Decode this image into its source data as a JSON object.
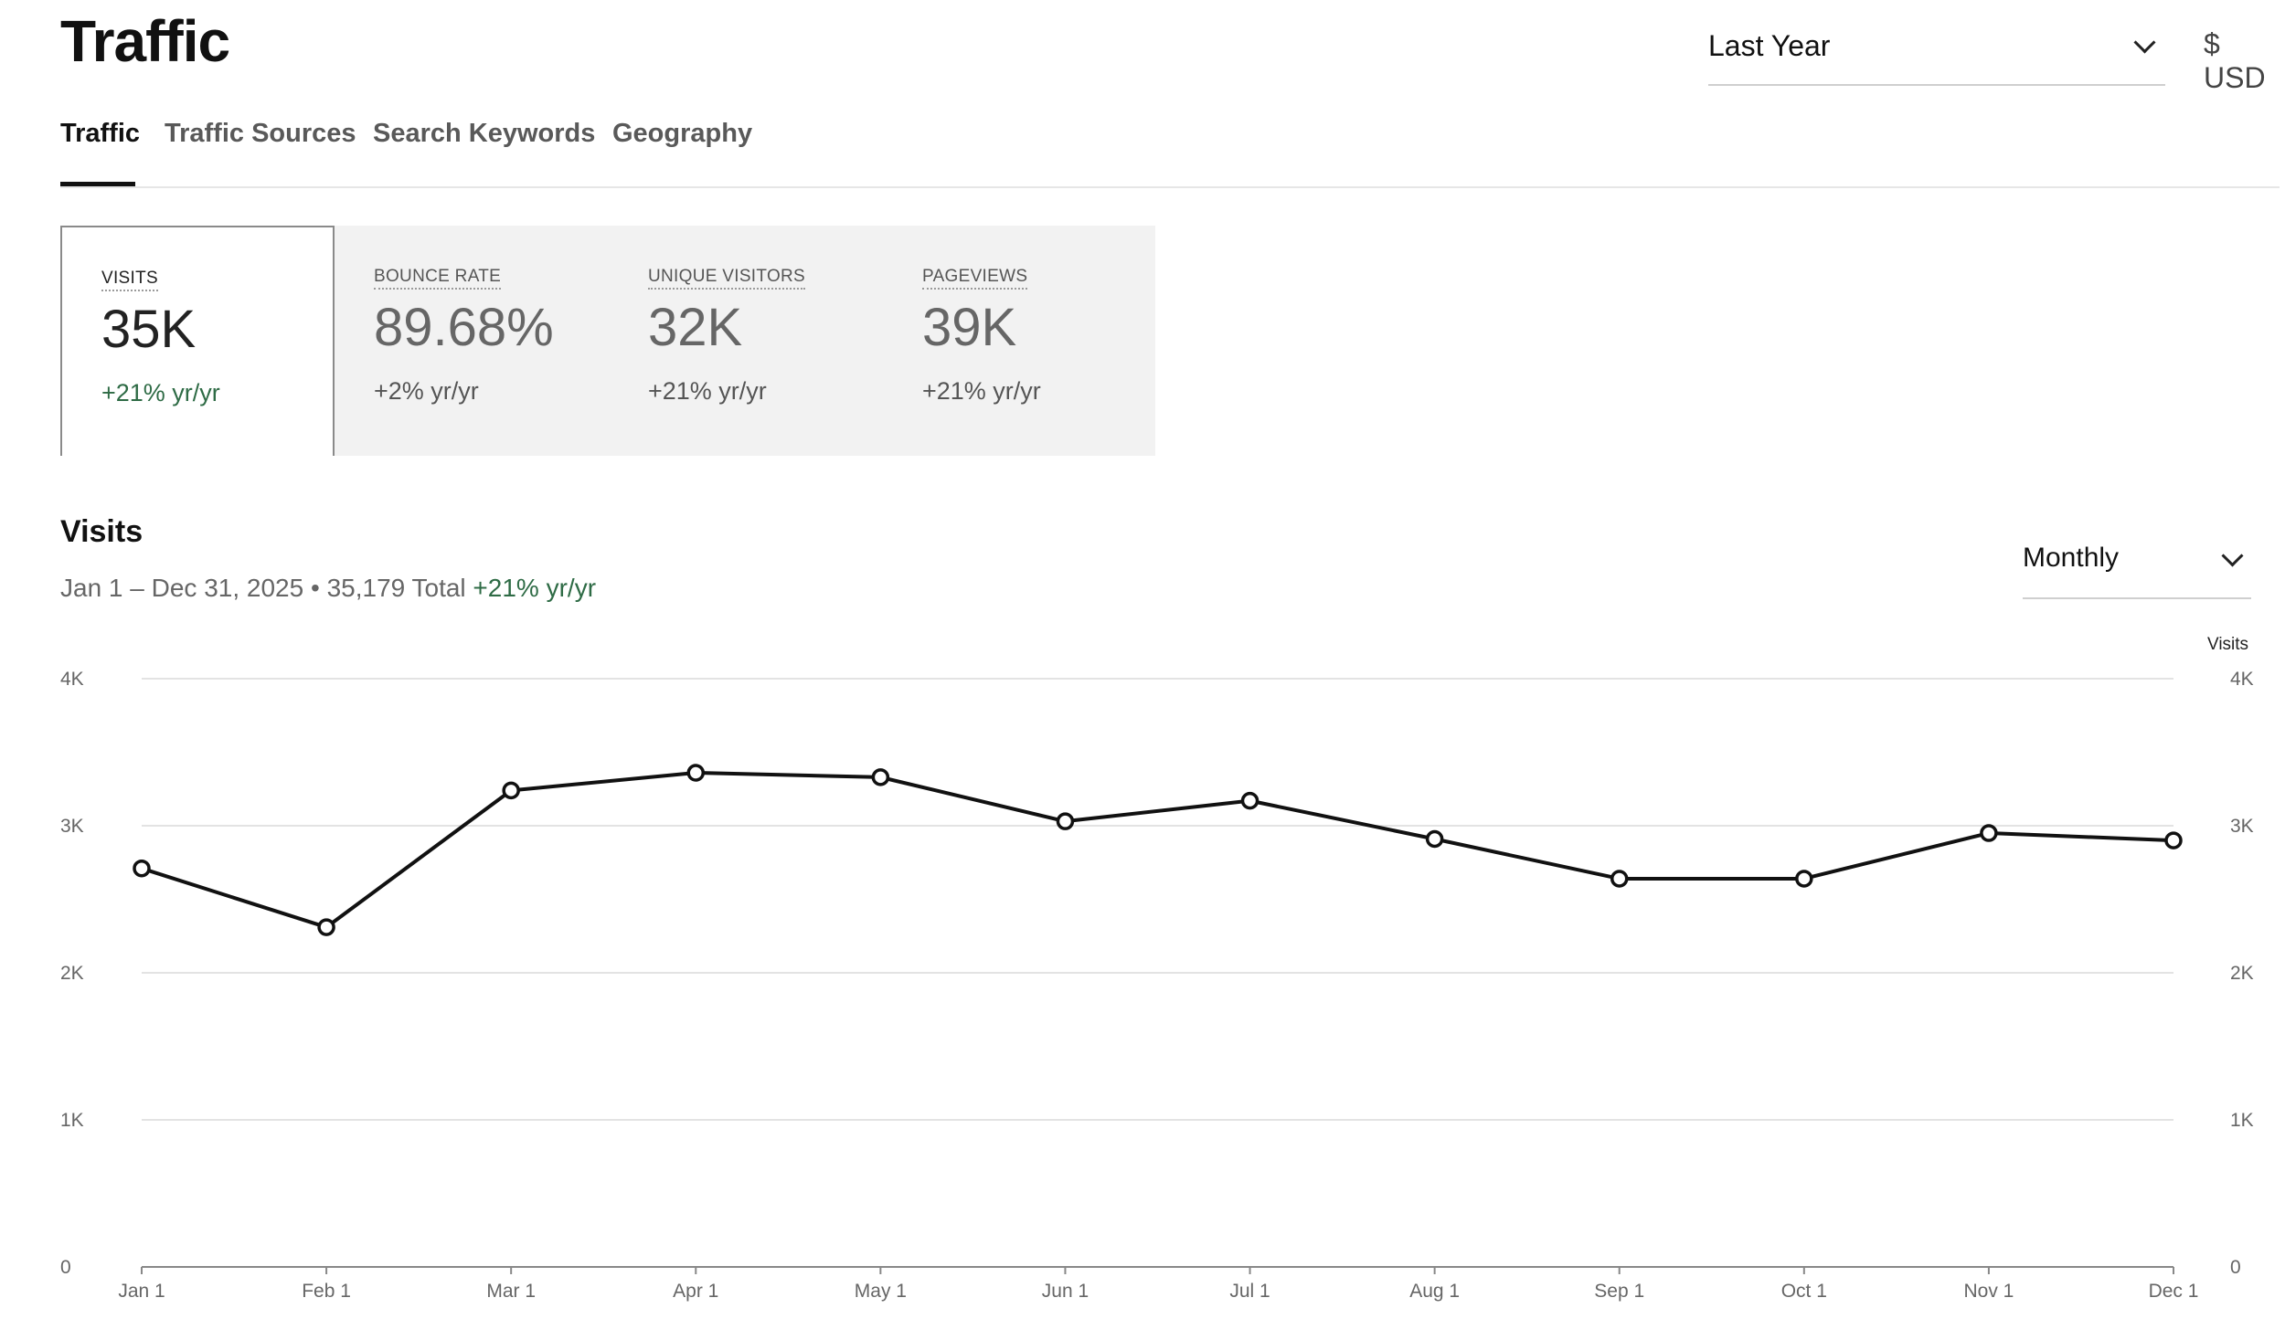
{
  "header": {
    "title": "Traffic",
    "range_label": "Last Year",
    "currency": "$ USD"
  },
  "tabs": [
    "Traffic",
    "Traffic Sources",
    "Search Keywords",
    "Geography"
  ],
  "metrics": [
    {
      "label": "VISITS",
      "value": "35K",
      "change": "+21% yr/yr"
    },
    {
      "label": "BOUNCE RATE",
      "value": "89.68%",
      "change": "+2% yr/yr"
    },
    {
      "label": "UNIQUE VISITORS",
      "value": "32K",
      "change": "+21% yr/yr"
    },
    {
      "label": "PAGEVIEWS",
      "value": "39K",
      "change": "+21% yr/yr"
    }
  ],
  "visits": {
    "title": "Visits",
    "date_range": "Jan 1 – Dec 31, 2025",
    "total": "35,179 Total",
    "change": "+21% yr/yr",
    "granularity": "Monthly"
  },
  "chart_data": {
    "type": "line",
    "title": "Visits",
    "right_axis_label": "Visits",
    "categories": [
      "Jan 1",
      "Feb 1",
      "Mar 1",
      "Apr 1",
      "May 1",
      "Jun 1",
      "Jul 1",
      "Aug 1",
      "Sep 1",
      "Oct 1",
      "Nov 1",
      "Dec 1"
    ],
    "series": [
      {
        "name": "Visits",
        "values": [
          2710,
          2310,
          3240,
          3360,
          3330,
          3030,
          3170,
          2910,
          2640,
          2640,
          2950,
          2900
        ]
      }
    ],
    "ylim": [
      0,
      4000
    ],
    "yticks": [
      {
        "value": 0,
        "label": "0"
      },
      {
        "value": 1000,
        "label": "1K"
      },
      {
        "value": 2000,
        "label": "2K"
      },
      {
        "value": 3000,
        "label": "3K"
      },
      {
        "value": 4000,
        "label": "4K"
      }
    ],
    "grid": true
  },
  "colors": {
    "accent_green": "#2e6b45",
    "line": "#111111",
    "grid": "#e3e3e3",
    "panel_bg": "#f2f2f2"
  }
}
